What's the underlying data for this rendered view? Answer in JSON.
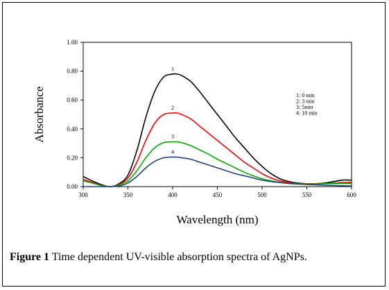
{
  "chart_data": {
    "type": "line",
    "title": "",
    "xlabel": "Wavelength (nm)",
    "ylabel": "Absorbance",
    "xlim": [
      300,
      600
    ],
    "ylim": [
      0,
      1.0
    ],
    "x_ticks": [
      "300",
      "350",
      "400",
      "450",
      "500",
      "550",
      "600"
    ],
    "y_ticks": [
      "0.00",
      "0.20",
      "0.40",
      "0.60",
      "0.80",
      "1.00"
    ],
    "grid": false,
    "legend_position": "right",
    "legend": [
      "1: 0 min",
      "2: 3 min",
      "3: 5min",
      "4: 10 min"
    ],
    "series": [
      {
        "name": "1: 0 min",
        "curve_label": "1",
        "color": "#000000",
        "x": [
          300,
          310,
          320,
          330,
          340,
          350,
          360,
          370,
          380,
          390,
          400,
          405,
          410,
          420,
          430,
          440,
          450,
          460,
          470,
          480,
          490,
          500,
          510,
          520,
          530,
          540,
          550,
          560,
          570,
          580,
          590,
          600
        ],
        "y": [
          0.07,
          0.04,
          0.015,
          0.0,
          0.02,
          0.08,
          0.25,
          0.48,
          0.66,
          0.76,
          0.78,
          0.78,
          0.77,
          0.73,
          0.66,
          0.58,
          0.5,
          0.42,
          0.34,
          0.27,
          0.2,
          0.14,
          0.09,
          0.055,
          0.035,
          0.025,
          0.02,
          0.02,
          0.025,
          0.035,
          0.045,
          0.045
        ]
      },
      {
        "name": "2: 3 min",
        "curve_label": "2",
        "color": "#ff0000",
        "x": [
          300,
          310,
          320,
          330,
          340,
          350,
          360,
          370,
          380,
          390,
          400,
          405,
          410,
          420,
          430,
          440,
          450,
          460,
          470,
          480,
          490,
          500,
          510,
          520,
          530,
          540,
          550,
          560,
          570,
          580,
          590,
          600
        ],
        "y": [
          0.05,
          0.03,
          0.01,
          0.0,
          0.015,
          0.06,
          0.17,
          0.32,
          0.44,
          0.5,
          0.51,
          0.51,
          0.5,
          0.47,
          0.42,
          0.37,
          0.32,
          0.27,
          0.22,
          0.17,
          0.13,
          0.09,
          0.06,
          0.04,
          0.028,
          0.022,
          0.02,
          0.02,
          0.022,
          0.025,
          0.028,
          0.03
        ]
      },
      {
        "name": "3: 5min",
        "curve_label": "3",
        "color": "#00aa00",
        "x": [
          300,
          310,
          320,
          330,
          340,
          350,
          360,
          370,
          380,
          390,
          400,
          405,
          410,
          420,
          430,
          440,
          450,
          460,
          470,
          480,
          490,
          500,
          510,
          520,
          530,
          540,
          550,
          560,
          570,
          580,
          590,
          600
        ],
        "y": [
          0.04,
          0.025,
          0.008,
          0.0,
          0.012,
          0.04,
          0.11,
          0.2,
          0.27,
          0.305,
          0.31,
          0.31,
          0.305,
          0.285,
          0.255,
          0.225,
          0.19,
          0.16,
          0.13,
          0.1,
          0.075,
          0.055,
          0.04,
          0.03,
          0.022,
          0.02,
          0.018,
          0.018,
          0.02,
          0.022,
          0.022,
          0.022
        ]
      },
      {
        "name": "4: 10 min",
        "curve_label": "4",
        "color": "#1f3f7f",
        "x": [
          300,
          310,
          320,
          330,
          340,
          350,
          360,
          370,
          380,
          390,
          400,
          405,
          410,
          420,
          430,
          440,
          450,
          460,
          470,
          480,
          490,
          500,
          510,
          520,
          530,
          540,
          550,
          560,
          570,
          580,
          590,
          600
        ],
        "y": [
          0.0,
          0.0,
          0.0,
          0.0,
          0.005,
          0.025,
          0.07,
          0.13,
          0.175,
          0.2,
          0.205,
          0.205,
          0.2,
          0.19,
          0.17,
          0.15,
          0.13,
          0.11,
          0.09,
          0.075,
          0.06,
          0.045,
          0.035,
          0.028,
          0.022,
          0.018,
          0.015,
          0.012,
          0.01,
          0.008,
          0.006,
          0.005
        ]
      }
    ]
  },
  "caption": {
    "label": "Figure 1",
    "text": " Time dependent UV-visible absorption spectra of AgNPs."
  }
}
